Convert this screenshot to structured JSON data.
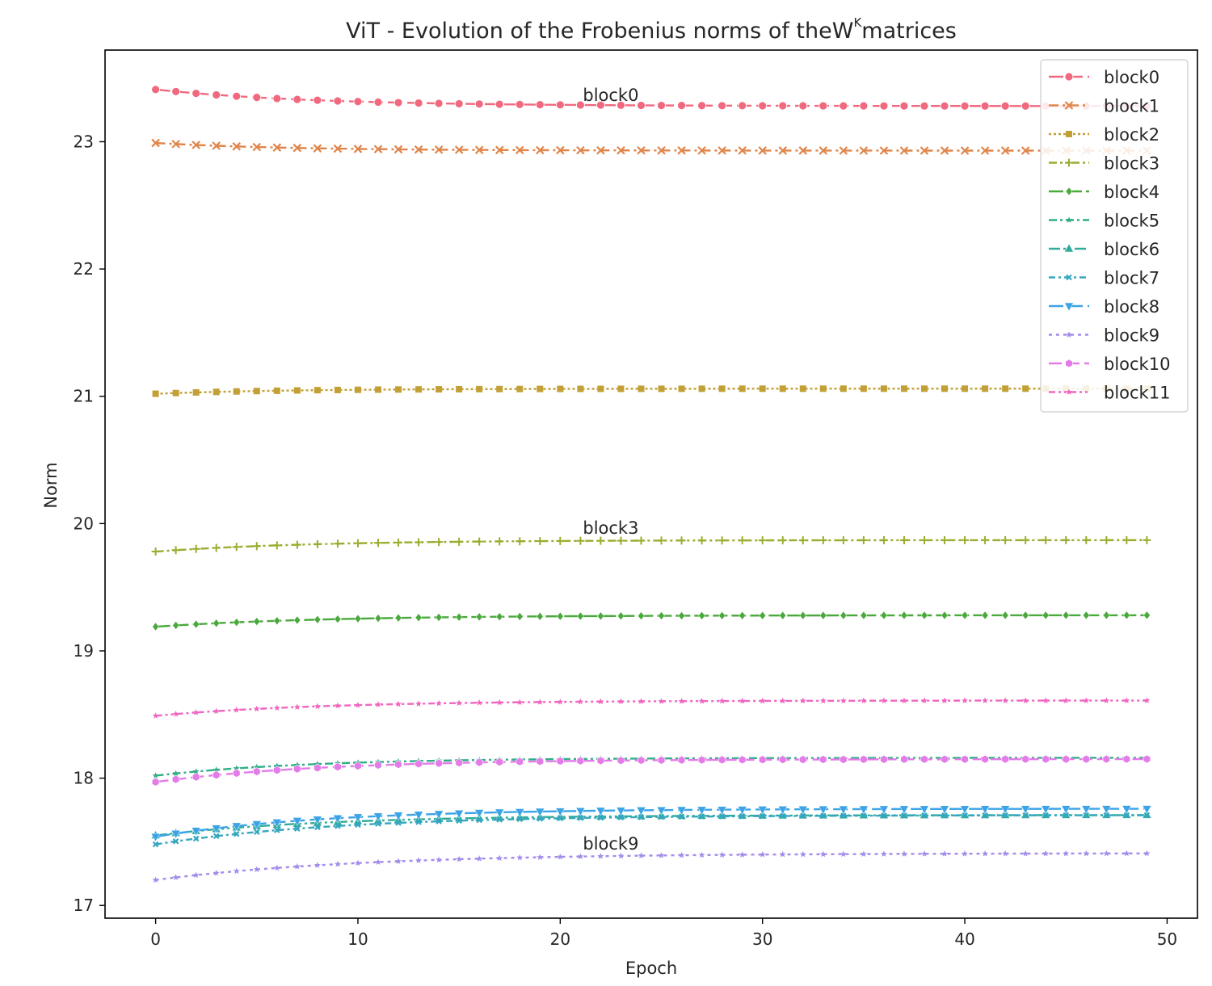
{
  "chart_data": {
    "type": "line",
    "title": {
      "prefix": "ViT - Evolution of the Frobenius norms of the",
      "symbol": "W",
      "superscript": "K",
      "suffix": "matrices"
    },
    "xlabel": "Epoch",
    "ylabel": "Norm",
    "xlim": [
      -2.5,
      51.5
    ],
    "ylim": [
      16.9,
      23.72
    ],
    "xticks": [
      0,
      10,
      20,
      30,
      40,
      50
    ],
    "yticks": [
      17,
      18,
      19,
      20,
      21,
      22,
      23
    ],
    "grid": false,
    "legend_placement": "top-right",
    "epochs": 50,
    "annotations": [
      {
        "text": "block0",
        "x": 22.5,
        "y": 23.32
      },
      {
        "text": "block3",
        "x": 22.5,
        "y": 19.92
      },
      {
        "text": "block9",
        "x": 22.5,
        "y": 17.44
      }
    ],
    "series": [
      {
        "name": "block0",
        "color": "#f0697f",
        "marker": "circle",
        "dash": "18,6",
        "start": 23.41,
        "end": 23.28,
        "rate": 0.13
      },
      {
        "name": "block1",
        "color": "#e0854a",
        "marker": "x",
        "dash": "12,5,3,5",
        "start": 22.99,
        "end": 22.93,
        "rate": 0.15
      },
      {
        "name": "block2",
        "color": "#c2a035",
        "marker": "square",
        "dash": "3,3",
        "start": 21.02,
        "end": 21.06,
        "rate": 0.15
      },
      {
        "name": "block3",
        "color": "#9cac2f",
        "marker": "plus",
        "dash": "10,4,3,4,3,4",
        "start": 19.78,
        "end": 19.87,
        "rate": 0.13
      },
      {
        "name": "block4",
        "color": "#4aa93c",
        "marker": "diamond",
        "dash": "18,5",
        "start": 19.19,
        "end": 19.28,
        "rate": 0.12
      },
      {
        "name": "block5",
        "color": "#31ad88",
        "marker": "star",
        "dash": "10,4,3,4",
        "start": 18.02,
        "end": 18.16,
        "rate": 0.13
      },
      {
        "name": "block6",
        "color": "#31ab9a",
        "marker": "triangle-up",
        "dash": "14,4,3,4,3,4",
        "start": 17.55,
        "end": 17.71,
        "rate": 0.12
      },
      {
        "name": "block7",
        "color": "#34a7bf",
        "marker": "x-small",
        "dash": "8,4,3,4",
        "start": 17.48,
        "end": 17.71,
        "rate": 0.11
      },
      {
        "name": "block8",
        "color": "#3ba3e6",
        "marker": "triangle-down",
        "dash": "18,6",
        "start": 17.54,
        "end": 17.76,
        "rate": 0.12
      },
      {
        "name": "block9",
        "color": "#a38ceb",
        "marker": "star",
        "dash": "4,5",
        "start": 17.2,
        "end": 17.41,
        "rate": 0.1
      },
      {
        "name": "block10",
        "color": "#e37be8",
        "marker": "hexagon",
        "dash": "16,6",
        "start": 17.97,
        "end": 18.15,
        "rate": 0.12
      },
      {
        "name": "block11",
        "color": "#f065c0",
        "marker": "star",
        "dash": "8,4,3,4,3,4",
        "start": 18.49,
        "end": 18.61,
        "rate": 0.12
      }
    ]
  }
}
